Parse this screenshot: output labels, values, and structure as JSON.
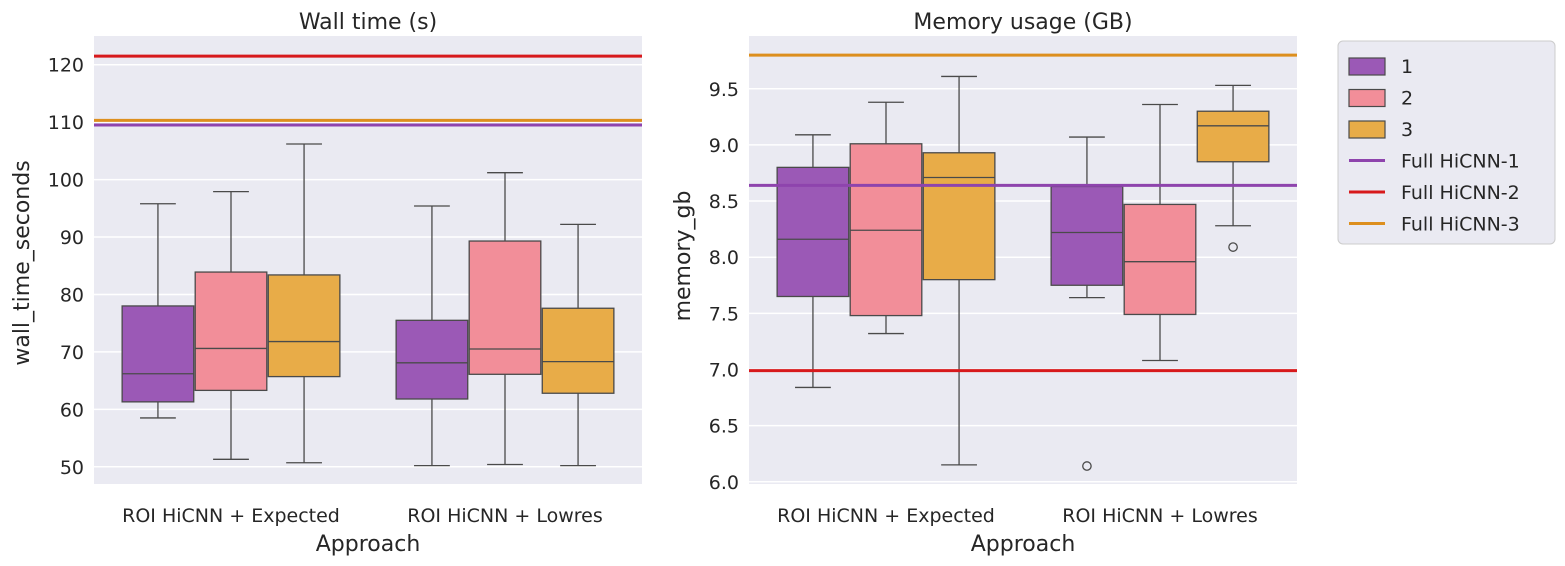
{
  "chart_data": [
    {
      "type": "box",
      "title": "Wall time (s)",
      "xlabel": "Approach",
      "ylabel": "wall_time_seconds",
      "ylim": [
        47,
        125
      ],
      "yticks": [
        50,
        60,
        70,
        80,
        90,
        100,
        110,
        120
      ],
      "categories": [
        "ROI HiCNN + Expected",
        "ROI HiCNN + Lowres"
      ],
      "series": [
        {
          "name": "1",
          "color": "#9b59b6",
          "boxes": [
            {
              "whisker_low": 58.5,
              "q1": 61.3,
              "median": 66.2,
              "q3": 78.0,
              "whisker_high": 95.8,
              "outliers": []
            },
            {
              "whisker_low": 50.2,
              "q1": 61.8,
              "median": 68.1,
              "q3": 75.5,
              "whisker_high": 95.4,
              "outliers": []
            }
          ]
        },
        {
          "name": "2",
          "color": "#f28e99",
          "boxes": [
            {
              "whisker_low": 51.3,
              "q1": 63.3,
              "median": 70.6,
              "q3": 83.9,
              "whisker_high": 97.9,
              "outliers": []
            },
            {
              "whisker_low": 50.4,
              "q1": 66.1,
              "median": 70.5,
              "q3": 89.3,
              "whisker_high": 101.2,
              "outliers": []
            }
          ]
        },
        {
          "name": "3",
          "color": "#e8ac48",
          "boxes": [
            {
              "whisker_low": 50.7,
              "q1": 65.7,
              "median": 71.8,
              "q3": 83.4,
              "whisker_high": 106.2,
              "outliers": []
            },
            {
              "whisker_low": 50.2,
              "q1": 62.8,
              "median": 68.3,
              "q3": 77.6,
              "whisker_high": 92.2,
              "outliers": []
            }
          ]
        }
      ],
      "reference_lines": [
        {
          "name": "Full HiCNN-1",
          "value": 109.5,
          "color": "#8e44ad"
        },
        {
          "name": "Full HiCNN-2",
          "value": 121.5,
          "color": "#d7191c"
        },
        {
          "name": "Full HiCNN-3",
          "value": 110.3,
          "color": "#dd8f1e"
        }
      ]
    },
    {
      "type": "box",
      "title": "Memory usage (GB)",
      "xlabel": "Approach",
      "ylabel": "memory_gb",
      "ylim": [
        5.98,
        9.97
      ],
      "yticks": [
        6.0,
        6.5,
        7.0,
        7.5,
        8.0,
        8.5,
        9.0,
        9.5
      ],
      "categories": [
        "ROI HiCNN + Expected",
        "ROI HiCNN + Lowres"
      ],
      "series": [
        {
          "name": "1",
          "color": "#9b59b6",
          "boxes": [
            {
              "whisker_low": 6.84,
              "q1": 7.65,
              "median": 8.16,
              "q3": 8.8,
              "whisker_high": 9.09,
              "outliers": []
            },
            {
              "whisker_low": 7.64,
              "q1": 7.75,
              "median": 8.22,
              "q3": 8.63,
              "whisker_high": 9.07,
              "outliers": [
                6.14
              ]
            }
          ]
        },
        {
          "name": "2",
          "color": "#f28e99",
          "boxes": [
            {
              "whisker_low": 7.32,
              "q1": 7.48,
              "median": 8.24,
              "q3": 9.01,
              "whisker_high": 9.38,
              "outliers": []
            },
            {
              "whisker_low": 7.08,
              "q1": 7.49,
              "median": 7.96,
              "q3": 8.47,
              "whisker_high": 9.36,
              "outliers": []
            }
          ]
        },
        {
          "name": "3",
          "color": "#e8ac48",
          "boxes": [
            {
              "whisker_low": 6.15,
              "q1": 7.8,
              "median": 8.71,
              "q3": 8.93,
              "whisker_high": 9.61,
              "outliers": []
            },
            {
              "whisker_low": 8.28,
              "q1": 8.85,
              "median": 9.17,
              "q3": 9.3,
              "whisker_high": 9.53,
              "outliers": [
                8.09
              ]
            }
          ]
        }
      ],
      "reference_lines": [
        {
          "name": "Full HiCNN-1",
          "value": 8.64,
          "color": "#8e44ad"
        },
        {
          "name": "Full HiCNN-2",
          "value": 6.99,
          "color": "#d7191c"
        },
        {
          "name": "Full HiCNN-3",
          "value": 9.8,
          "color": "#dd8f1e"
        }
      ]
    }
  ],
  "legend": {
    "placement": "outside-right",
    "entries": [
      {
        "label": "1",
        "kind": "patch",
        "color": "#9b59b6"
      },
      {
        "label": "2",
        "kind": "patch",
        "color": "#f28e99"
      },
      {
        "label": "3",
        "kind": "patch",
        "color": "#e8ac48"
      },
      {
        "label": "Full HiCNN-1",
        "kind": "line",
        "color": "#8e44ad"
      },
      {
        "label": "Full HiCNN-2",
        "kind": "line",
        "color": "#d7191c"
      },
      {
        "label": "Full HiCNN-3",
        "kind": "line",
        "color": "#dd8f1e"
      }
    ]
  }
}
